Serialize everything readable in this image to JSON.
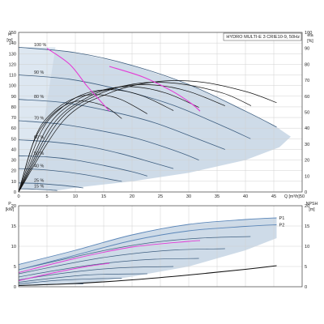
{
  "header": {
    "title": "HYDRO MULTI-E 3 CRIE10-9, 50Hz"
  },
  "chart_data": [
    {
      "type": "line",
      "title": "HYDRO MULTI-E 3 CRIE10-9, 50Hz",
      "xlabel": "Q [m³/h]",
      "ylabel": "H [m]",
      "y2label": "eta [%]",
      "xlim": [
        0,
        50
      ],
      "ylim": [
        0,
        150
      ],
      "y2lim": [
        0,
        100
      ],
      "x_ticks": [
        0,
        5,
        10,
        15,
        20,
        25,
        30,
        35,
        40,
        45,
        50
      ],
      "y_ticks": [
        0,
        10,
        20,
        30,
        40,
        50,
        60,
        70,
        80,
        90,
        100,
        110,
        120,
        130,
        140,
        150
      ],
      "y2_ticks": [
        0,
        10,
        20,
        30,
        40,
        50,
        60,
        70,
        80,
        90,
        100
      ],
      "grid": true,
      "speed_curves": [
        {
          "label": "100 %",
          "x": [
            0,
            10,
            20,
            30,
            40,
            45.5
          ],
          "y": [
            136,
            131,
            119,
            101,
            76,
            61
          ]
        },
        {
          "label": "90 %",
          "x": [
            0,
            9,
            18,
            27,
            36,
            40.9
          ],
          "y": [
            110,
            106,
            96,
            82,
            62,
            50
          ]
        },
        {
          "label": "80 %",
          "x": [
            0,
            8,
            16,
            24,
            32,
            36.4
          ],
          "y": [
            87,
            84,
            76,
            65,
            49,
            40
          ]
        },
        {
          "label": "70 %",
          "x": [
            0,
            7,
            14,
            21,
            28,
            31.8
          ],
          "y": [
            67,
            64,
            58,
            50,
            38,
            30
          ]
        },
        {
          "label": "60 %",
          "x": [
            0,
            6,
            12,
            18,
            24,
            27.3
          ],
          "y": [
            49,
            47,
            43,
            36,
            27,
            22
          ]
        },
        {
          "label": "50 %",
          "x": [
            0,
            5,
            10,
            15,
            20,
            22.7
          ],
          "y": [
            34,
            33,
            30,
            25,
            19,
            15
          ]
        },
        {
          "label": "40 %",
          "x": [
            0,
            4,
            8,
            12,
            16,
            18.2
          ],
          "y": [
            22,
            21,
            19,
            16,
            12,
            10
          ]
        },
        {
          "label": "25 %",
          "x": [
            0,
            2.5,
            5,
            7.5,
            10,
            11.4
          ],
          "y": [
            8.5,
            8.2,
            7.4,
            6.3,
            4.8,
            3.8
          ]
        },
        {
          "label": "15 %",
          "x": [
            0,
            1.5,
            3,
            4.5,
            6,
            6.8
          ],
          "y": [
            3,
            2.9,
            2.6,
            2.2,
            1.7,
            1.4
          ]
        }
      ],
      "efficiency_curves": [
        {
          "x": [
            0,
            8,
            16,
            24,
            32,
            40,
            45.5
          ],
          "y": [
            0,
            45,
            62,
            69,
            69,
            63,
            56
          ]
        },
        {
          "x": [
            0,
            7,
            14,
            21,
            28,
            36,
            41
          ],
          "y": [
            0,
            44,
            61,
            68,
            68,
            62,
            54
          ]
        },
        {
          "x": [
            0,
            6,
            12,
            18,
            24,
            30,
            36.4
          ],
          "y": [
            0,
            42,
            59,
            66,
            67,
            63,
            54
          ]
        },
        {
          "x": [
            0,
            5,
            10,
            15,
            20,
            26,
            31.8
          ],
          "y": [
            0,
            40,
            57,
            64,
            66,
            62,
            53
          ]
        },
        {
          "x": [
            0,
            4,
            8,
            12,
            17,
            22,
            27.3
          ],
          "y": [
            0,
            38,
            54,
            62,
            64,
            60,
            51
          ]
        },
        {
          "x": [
            0,
            3,
            6,
            10,
            14,
            18,
            22.7
          ],
          "y": [
            0,
            35,
            50,
            59,
            61,
            58,
            49
          ]
        },
        {
          "x": [
            0,
            2.5,
            5,
            8,
            11,
            15,
            18.2
          ],
          "y": [
            0,
            30,
            45,
            54,
            57,
            54,
            46
          ]
        }
      ],
      "magenta_curves": [
        {
          "x": [
            5,
            9,
            12,
            14.5,
            16
          ],
          "y": [
            135,
            120,
            100,
            85,
            76
          ]
        },
        {
          "x": [
            16,
            22,
            27,
            30.5,
            32
          ],
          "y": [
            118,
            108,
            95,
            83,
            76
          ]
        }
      ],
      "percent_labels": [
        "100 %",
        "90 %",
        "80 %",
        "70 %",
        "60 %",
        "50 %",
        "40 %",
        "25 %",
        "15 %"
      ]
    },
    {
      "type": "line",
      "xlabel": "",
      "ylabel": "P [kW]",
      "y2label": "NPSH [m]",
      "xlim": [
        0,
        50
      ],
      "ylim": [
        0,
        20
      ],
      "y2lim": [
        0,
        20
      ],
      "y_ticks": [
        0,
        5,
        10,
        15,
        20
      ],
      "y2_ticks": [
        0,
        5,
        10,
        15,
        20
      ],
      "grid": true,
      "series": [
        {
          "name": "P1",
          "x": [
            0,
            10,
            20,
            30,
            40,
            45.5
          ],
          "y": [
            5.5,
            9.0,
            12.8,
            15.4,
            16.6,
            17.0
          ]
        },
        {
          "name": "P2",
          "x": [
            0,
            10,
            20,
            30,
            40,
            45.5
          ],
          "y": [
            4.2,
            7.8,
            11.4,
            13.8,
            14.9,
            15.3
          ]
        }
      ],
      "power_curves": [
        {
          "x": [
            0,
            8,
            16,
            24,
            32,
            40.9
          ],
          "y": [
            4.2,
            6.8,
            9.2,
            11.0,
            12.0,
            12.4
          ]
        },
        {
          "x": [
            0,
            7,
            14,
            21,
            28,
            36.4
          ],
          "y": [
            3.2,
            5.2,
            7.0,
            8.3,
            9.1,
            9.4
          ]
        },
        {
          "x": [
            0,
            6,
            12,
            18,
            24,
            31.8
          ],
          "y": [
            2.4,
            3.9,
            5.2,
            6.2,
            6.8,
            7.0
          ]
        },
        {
          "x": [
            0,
            5,
            10,
            15,
            20,
            27.3
          ],
          "y": [
            1.7,
            2.8,
            3.7,
            4.4,
            4.8,
            5.0
          ]
        },
        {
          "x": [
            0,
            4,
            8,
            12,
            16,
            22.7
          ],
          "y": [
            1.1,
            1.8,
            2.4,
            2.9,
            3.1,
            3.2
          ]
        },
        {
          "x": [
            0,
            3,
            6,
            10,
            14,
            18.2
          ],
          "y": [
            0.7,
            1.1,
            1.5,
            1.8,
            2.0,
            2.1
          ]
        },
        {
          "x": [
            0,
            2,
            4,
            6,
            9,
            11.4
          ],
          "y": [
            0.3,
            0.4,
            0.5,
            0.6,
            0.7,
            0.7
          ]
        }
      ],
      "magenta_power": [
        {
          "x": [
            0,
            10,
            20,
            30,
            32
          ],
          "y": [
            3.5,
            7.0,
            9.8,
            11.2,
            11.4
          ]
        },
        {
          "x": [
            0,
            6,
            12,
            16
          ],
          "y": [
            1.5,
            3.4,
            5.0,
            5.8
          ]
        }
      ],
      "npsh": {
        "x": [
          0,
          10,
          20,
          30,
          40,
          45.5
        ],
        "y": [
          0.3,
          0.8,
          1.7,
          2.9,
          4.3,
          5.2
        ]
      }
    }
  ],
  "colors": {
    "envelope": "#c9d7e6",
    "envelope_light": "#dde7f1",
    "speed_curve": "#3f5f80",
    "eff_curve": "#111111",
    "magenta": "#e43bd6",
    "grid": "#d0d0d0",
    "power_hi": "#5b86b8"
  }
}
